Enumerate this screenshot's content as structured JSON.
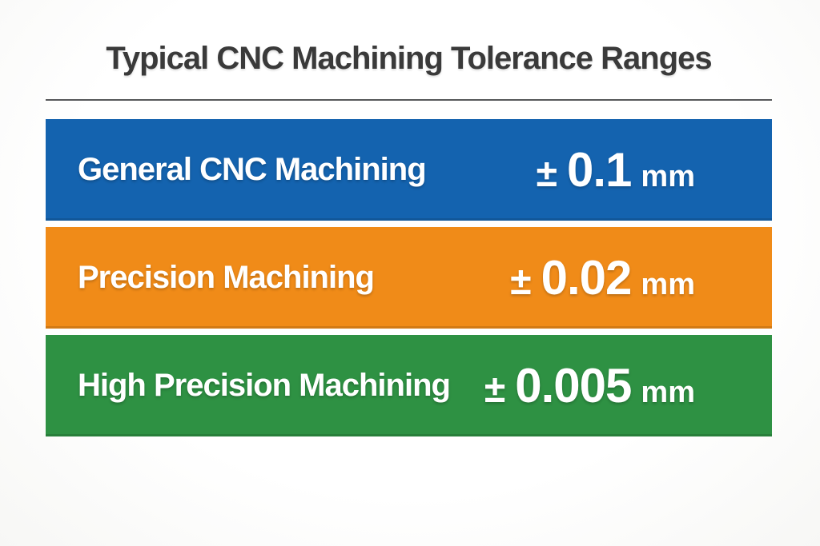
{
  "title": "Typical CNC Machining Tolerance Ranges",
  "colors": {
    "background": "#fcfcfb",
    "title_text": "#3a3a3a",
    "divider": "#56585a",
    "bar_text": "#ffffff",
    "general_blue": "#1463af",
    "precision_orange": "#f08b18",
    "high_precision_green": "#2e9143"
  },
  "chart_data": {
    "type": "table",
    "title": "Typical CNC Machining Tolerance Ranges",
    "unit": "mm",
    "rows": [
      {
        "label": "General CNC Machining",
        "pm": "±",
        "value": "0.1",
        "value_mm": 0.1,
        "unit": "mm",
        "tolerance_text": "± 0.1 mm",
        "color": "#1463af"
      },
      {
        "label": "Precision Machining",
        "pm": "±",
        "value": "0.02",
        "value_mm": 0.02,
        "unit": "mm",
        "tolerance_text": "± 0.02 mm",
        "color": "#f08b18"
      },
      {
        "label": "High Precision Machining",
        "pm": "±",
        "value": "0.005",
        "value_mm": 0.005,
        "unit": "mm",
        "tolerance_text": "± 0.005 mm",
        "color": "#2e9143"
      }
    ]
  }
}
